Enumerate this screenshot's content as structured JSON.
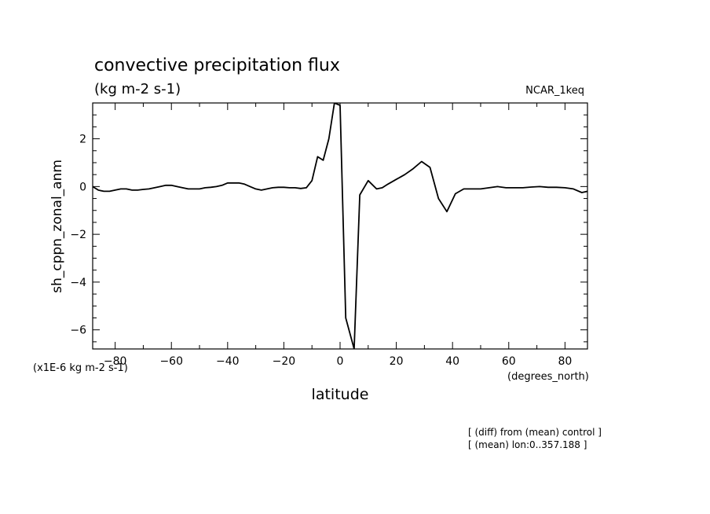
{
  "chart_data": {
    "type": "line",
    "title": "convective precipitation flux",
    "subtitle": "(kg m-2 s-1)",
    "dataset_label": "NCAR_1keq",
    "ylabel": "sh_cppn_zonal_anm",
    "xlabel": "latitude",
    "y_scale_label": "(x1E-6 kg m-2 s-1)",
    "x_unit_label": "(degrees_north)",
    "notes": [
      "[ (diff) from (mean) control ]",
      "[ (mean) lon:0..357.188 ]"
    ],
    "xlim": [
      -88,
      88
    ],
    "ylim": [
      -6.8,
      3.5
    ],
    "x_ticks": [
      -80,
      -60,
      -40,
      -20,
      0,
      20,
      40,
      60,
      80
    ],
    "x_tick_labels": [
      "−80",
      "−60",
      "−40",
      "−20",
      "0",
      "20",
      "40",
      "60",
      "80"
    ],
    "y_ticks": [
      2,
      0,
      -2,
      -4,
      -6
    ],
    "y_tick_labels": [
      "2",
      "0",
      "−2",
      "−4",
      "−6"
    ],
    "grid": false,
    "series": [
      {
        "color": "#000000",
        "x": [
          -88,
          -86,
          -84,
          -82,
          -80,
          -78,
          -76,
          -74,
          -72,
          -70,
          -68,
          -66,
          -64,
          -62,
          -60,
          -58,
          -56,
          -54,
          -52,
          -50,
          -48,
          -46,
          -44,
          -42,
          -40,
          -38,
          -36,
          -34,
          -32,
          -30,
          -28,
          -26,
          -24,
          -22,
          -20,
          -18,
          -16,
          -14,
          -12,
          -10,
          -8,
          -6,
          -4,
          -2,
          0,
          2,
          5,
          7,
          10,
          13,
          15,
          17,
          20,
          23,
          26,
          29,
          32,
          35,
          38,
          41,
          44,
          47,
          50,
          53,
          56,
          59,
          62,
          65,
          68,
          71,
          74,
          77,
          80,
          83,
          86,
          88
        ],
        "y": [
          0.0,
          -0.15,
          -0.2,
          -0.2,
          -0.15,
          -0.1,
          -0.1,
          -0.15,
          -0.15,
          -0.12,
          -0.1,
          -0.05,
          0.0,
          0.05,
          0.05,
          0.0,
          -0.05,
          -0.1,
          -0.1,
          -0.1,
          -0.05,
          -0.03,
          0.0,
          0.05,
          0.15,
          0.15,
          0.15,
          0.1,
          0.0,
          -0.1,
          -0.15,
          -0.1,
          -0.05,
          -0.03,
          -0.03,
          -0.05,
          -0.05,
          -0.08,
          -0.05,
          0.25,
          1.25,
          1.1,
          2.0,
          3.5,
          3.4,
          -5.5,
          -6.8,
          -0.35,
          0.25,
          -0.1,
          -0.05,
          0.1,
          0.3,
          0.5,
          0.75,
          1.05,
          0.8,
          -0.5,
          -1.05,
          -0.3,
          -0.1,
          -0.1,
          -0.1,
          -0.05,
          0.0,
          -0.05,
          -0.05,
          -0.05,
          -0.02,
          0.0,
          -0.03,
          -0.03,
          -0.05,
          -0.1,
          -0.25,
          -0.2
        ]
      }
    ]
  }
}
